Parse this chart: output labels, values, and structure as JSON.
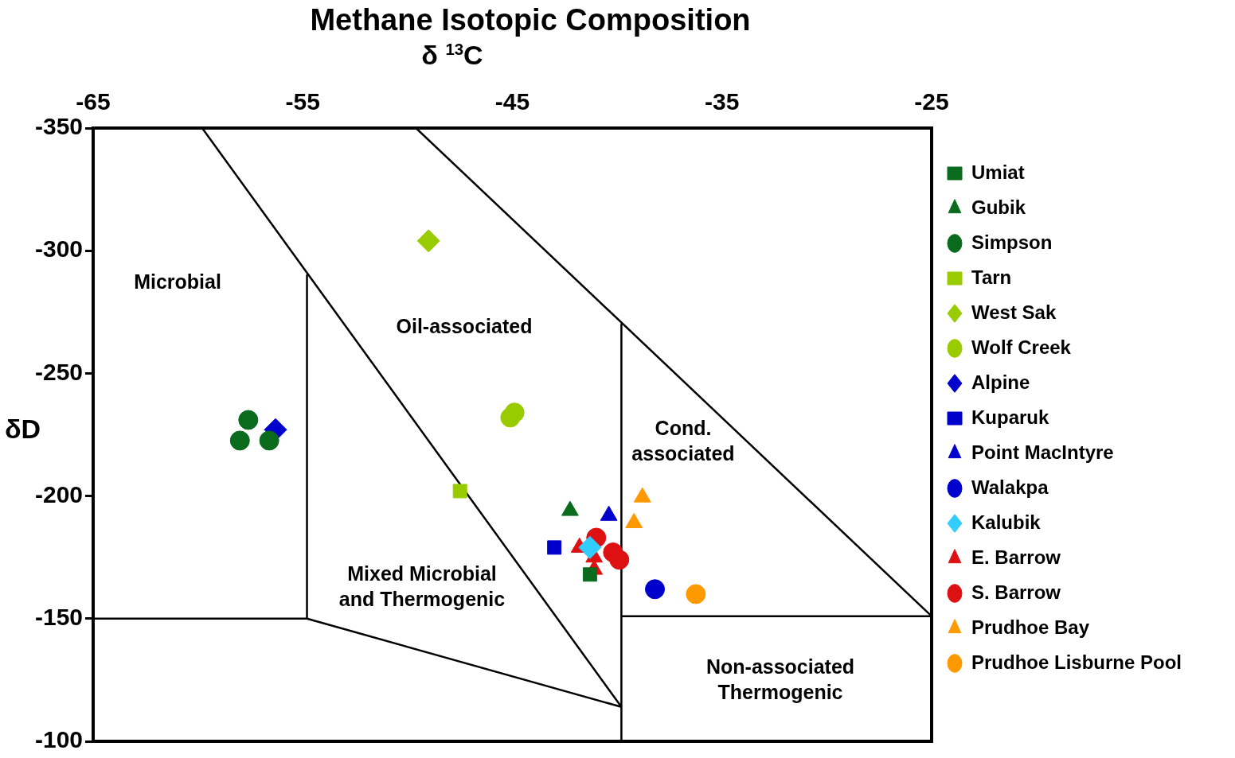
{
  "chart_data": {
    "type": "scatter",
    "title": "Methane Isotopic Composition",
    "xlabel": "δ $^{13}$C",
    "ylabel": "δD",
    "xlim": [
      -65,
      -25
    ],
    "xticks": [
      -65,
      -55,
      -45,
      -35,
      -25
    ],
    "ylim": [
      -100,
      -350
    ],
    "yticks": [
      -350,
      -300,
      -250,
      -200,
      -150,
      -100
    ],
    "grid": false,
    "legend": "right",
    "series": [
      {
        "type": "line",
        "color": "#000000",
        "marker": "none",
        "x": [
          -59.8,
          -39.8
        ],
        "values": [
          -350,
          -114
        ]
      },
      {
        "type": "line",
        "color": "#000000",
        "marker": "none",
        "x": [
          -49.6,
          -25
        ],
        "values": [
          -350,
          -151
        ]
      },
      {
        "type": "line",
        "color": "#000000",
        "marker": "none",
        "x": [
          -39.8,
          -39.8
        ],
        "values": [
          -270,
          -100
        ]
      },
      {
        "type": "line",
        "color": "#000000",
        "marker": "none",
        "x": [
          -54.8,
          -54.8
        ],
        "values": [
          -290,
          -150
        ]
      },
      {
        "type": "line",
        "color": "#000000",
        "marker": "none",
        "x": [
          -65,
          -54.8,
          -39.8
        ],
        "values": [
          -150,
          -150,
          -114
        ]
      },
      {
        "type": "line",
        "color": "#000000",
        "marker": "none",
        "x": [
          -39.8,
          -25
        ],
        "values": [
          -151,
          -151
        ]
      },
      {
        "name": "Umiat",
        "color": "#0a6b1f",
        "marker": "square",
        "x": [
          -41.3
        ],
        "values": [
          -168
        ]
      },
      {
        "name": "Gubik",
        "color": "#0a6b1f",
        "marker": "triangle",
        "x": [
          -42.25
        ],
        "values": [
          -194
        ]
      },
      {
        "name": "Simpson",
        "color": "#0a6b1f",
        "marker": "circle",
        "x": [
          -57.6,
          -58.0,
          -56.6
        ],
        "values": [
          -231,
          -222.6,
          -222.6
        ]
      },
      {
        "name": "Tarn",
        "color": "#99cc00",
        "marker": "square",
        "x": [
          -47.5
        ],
        "values": [
          -202
        ]
      },
      {
        "name": "West Sak",
        "color": "#99cc00",
        "marker": "diamond",
        "x": [
          -49.0
        ],
        "values": [
          -304
        ]
      },
      {
        "name": "Wolf Creek",
        "color": "#99cc00",
        "marker": "circle",
        "x": [
          -44.9,
          -45.1
        ],
        "values": [
          -234,
          -232
        ]
      },
      {
        "name": "Alpine",
        "color": "#0000cc",
        "marker": "diamond",
        "x": [
          -56.3
        ],
        "values": [
          -227
        ]
      },
      {
        "name": "Kuparuk",
        "color": "#0000cc",
        "marker": "square",
        "x": [
          -43.0
        ],
        "values": [
          -179
        ]
      },
      {
        "name": "Point MacIntyre",
        "color": "#0000cc",
        "marker": "triangle",
        "x": [
          -40.4
        ],
        "values": [
          -192
        ]
      },
      {
        "name": "Walakpa",
        "color": "#0000cc",
        "marker": "circle",
        "x": [
          -38.2
        ],
        "values": [
          -162
        ]
      },
      {
        "name": "Kalubik",
        "color": "#33ccff",
        "marker": "diamond",
        "x": [
          -41.3
        ],
        "values": [
          -179
        ]
      },
      {
        "name": "E. Barrow",
        "color": "#dd1111",
        "marker": "triangle",
        "x": [
          -41.8,
          -41.1,
          -41.1
        ],
        "values": [
          -179,
          -175,
          -170
        ]
      },
      {
        "name": "S. Barrow",
        "color": "#dd1111",
        "marker": "circle",
        "x": [
          -41.0,
          -40.2,
          -39.9
        ],
        "values": [
          -183,
          -177,
          -174
        ]
      },
      {
        "name": "Prudhoe Bay",
        "color": "#ff9900",
        "marker": "triangle",
        "x": [
          -38.8,
          -39.2
        ],
        "values": [
          -199.5,
          -189
        ]
      },
      {
        "name": "Prudhoe Lisburne Pool",
        "color": "#ff9900",
        "marker": "circle",
        "x": [
          -36.25
        ],
        "values": [
          -160
        ]
      }
    ],
    "annotations": [
      "Microbial",
      "Oil-associated",
      "Cond.\nassociated",
      "Mixed Microbial\nand Thermogenic",
      "Non-associated\nThermogenic"
    ]
  }
}
